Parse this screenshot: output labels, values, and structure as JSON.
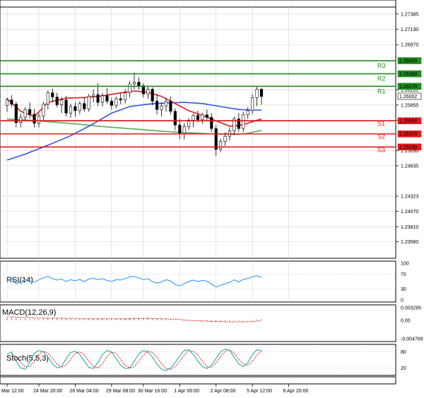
{
  "chart_data": {
    "type": "candlestick",
    "symbol_note": "",
    "main": {
      "ylim": [
        1.2328,
        1.2762
      ],
      "y_ticks": [
        "1.27385",
        "1.27130",
        "1.26870",
        "1.26110",
        "1.25855",
        "1.25600",
        "1.25090",
        "1.24835",
        "1.24323",
        "1.24070",
        "1.23810",
        "1.23560"
      ],
      "price_tags": [
        {
          "label": "1.26600",
          "value": 1.266,
          "kind": "resistance"
        },
        {
          "label": "1.26380",
          "value": 1.2638,
          "kind": "resistance"
        },
        {
          "label": "1.26170",
          "value": 1.2617,
          "kind": "resistance"
        },
        {
          "label": "1.26002",
          "value": 1.26002,
          "kind": "current"
        },
        {
          "label": "1.25590",
          "value": 1.2559,
          "kind": "support"
        },
        {
          "label": "1.25370",
          "value": 1.2537,
          "kind": "support"
        },
        {
          "label": "1.25150",
          "value": 1.2515,
          "kind": "support"
        }
      ],
      "levels": [
        {
          "name": "R3",
          "value": 1.266,
          "color": "#1f8c1f"
        },
        {
          "name": "R2",
          "value": 1.2638,
          "color": "#1f8c1f"
        },
        {
          "name": "R1",
          "value": 1.2617,
          "color": "#1f8c1f"
        },
        {
          "name": "S1",
          "value": 1.2559,
          "color": "#e01b1b"
        },
        {
          "name": "S2",
          "value": 1.2537,
          "color": "#e01b1b"
        },
        {
          "name": "S3",
          "value": 1.2515,
          "color": "#e01b1b"
        }
      ],
      "candles": [
        [
          1.2585,
          1.2598,
          1.2574,
          1.2594
        ],
        [
          1.2594,
          1.2602,
          1.2582,
          1.2587
        ],
        [
          1.2587,
          1.2591,
          1.2548,
          1.2556
        ],
        [
          1.2556,
          1.2571,
          1.2548,
          1.2565
        ],
        [
          1.2565,
          1.2582,
          1.2558,
          1.2578
        ],
        [
          1.2578,
          1.259,
          1.2563,
          1.257
        ],
        [
          1.257,
          1.2579,
          1.2548,
          1.2555
        ],
        [
          1.2555,
          1.2572,
          1.2548,
          1.2567
        ],
        [
          1.2567,
          1.2591,
          1.256,
          1.2587
        ],
        [
          1.2587,
          1.261,
          1.2578,
          1.2606
        ],
        [
          1.2606,
          1.2613,
          1.259,
          1.2599
        ],
        [
          1.2599,
          1.2606,
          1.2582,
          1.2586
        ],
        [
          1.2586,
          1.2599,
          1.2572,
          1.2594
        ],
        [
          1.2594,
          1.2601,
          1.2566,
          1.2572
        ],
        [
          1.2572,
          1.2588,
          1.2564,
          1.2583
        ],
        [
          1.2583,
          1.259,
          1.2566,
          1.2576
        ],
        [
          1.2576,
          1.2592,
          1.257,
          1.2588
        ],
        [
          1.2588,
          1.2598,
          1.2574,
          1.2579
        ],
        [
          1.2579,
          1.2604,
          1.2574,
          1.26
        ],
        [
          1.26,
          1.2612,
          1.259,
          1.2603
        ],
        [
          1.2603,
          1.2622,
          1.2584,
          1.259
        ],
        [
          1.259,
          1.2606,
          1.2583,
          1.2601
        ],
        [
          1.2601,
          1.2614,
          1.2588,
          1.2592
        ],
        [
          1.2592,
          1.2598,
          1.2578,
          1.2585
        ],
        [
          1.2585,
          1.26,
          1.258,
          1.2596
        ],
        [
          1.2596,
          1.2606,
          1.2587,
          1.2594
        ],
        [
          1.2594,
          1.2612,
          1.2588,
          1.2606
        ],
        [
          1.2606,
          1.2626,
          1.2598,
          1.2621
        ],
        [
          1.2621,
          1.264,
          1.2612,
          1.2624
        ],
        [
          1.2624,
          1.2632,
          1.2611,
          1.2618
        ],
        [
          1.2618,
          1.2622,
          1.2598,
          1.2604
        ],
        [
          1.2604,
          1.2616,
          1.2596,
          1.2612
        ],
        [
          1.2612,
          1.2615,
          1.2585,
          1.2592
        ],
        [
          1.2592,
          1.2604,
          1.257,
          1.2578
        ],
        [
          1.2578,
          1.259,
          1.2566,
          1.2584
        ],
        [
          1.2584,
          1.2598,
          1.2574,
          1.2592
        ],
        [
          1.2592,
          1.26,
          1.257,
          1.2575
        ],
        [
          1.2575,
          1.258,
          1.2543,
          1.2552
        ],
        [
          1.2552,
          1.2562,
          1.2528,
          1.2538
        ],
        [
          1.2538,
          1.2555,
          1.2528,
          1.2549
        ],
        [
          1.2549,
          1.2564,
          1.2543,
          1.256
        ],
        [
          1.256,
          1.2571,
          1.2548,
          1.2568
        ],
        [
          1.2568,
          1.2576,
          1.2556,
          1.2561
        ],
        [
          1.2561,
          1.2572,
          1.2554,
          1.2569
        ],
        [
          1.2569,
          1.2578,
          1.2558,
          1.2565
        ],
        [
          1.2565,
          1.2572,
          1.254,
          1.2546
        ],
        [
          1.2546,
          1.2552,
          1.25,
          1.2511
        ],
        [
          1.2511,
          1.2529,
          1.2506,
          1.2524
        ],
        [
          1.2524,
          1.254,
          1.2517,
          1.2533
        ],
        [
          1.2533,
          1.2548,
          1.2526,
          1.2542
        ],
        [
          1.2542,
          1.2566,
          1.2535,
          1.2562
        ],
        [
          1.2562,
          1.2572,
          1.254,
          1.2546
        ],
        [
          1.2546,
          1.2574,
          1.254,
          1.2569
        ],
        [
          1.2569,
          1.2582,
          1.2562,
          1.2576
        ],
        [
          1.2576,
          1.2604,
          1.257,
          1.2598
        ],
        [
          1.2598,
          1.2618,
          1.2584,
          1.2612
        ],
        [
          1.2612,
          1.2614,
          1.2586,
          1.26
        ]
      ],
      "ma_fast": [
        [
          0,
          1.2596
        ],
        [
          3,
          1.2575
        ],
        [
          6,
          1.2566
        ],
        [
          9,
          1.259
        ],
        [
          13,
          1.2597
        ],
        [
          17,
          1.2598
        ],
        [
          21,
          1.2601
        ],
        [
          25,
          1.2606
        ],
        [
          28,
          1.2609
        ],
        [
          31,
          1.2607
        ],
        [
          34,
          1.26
        ],
        [
          37,
          1.2588
        ],
        [
          40,
          1.2576
        ],
        [
          43,
          1.2568
        ],
        [
          45,
          1.2562
        ],
        [
          47,
          1.2556
        ],
        [
          49,
          1.255
        ],
        [
          51,
          1.2551
        ],
        [
          53,
          1.2555
        ],
        [
          55,
          1.256
        ],
        [
          56,
          1.2562
        ]
      ],
      "ma_mid": [
        [
          0,
          1.2493
        ],
        [
          4,
          1.2503
        ],
        [
          9,
          1.2518
        ],
        [
          14,
          1.2534
        ],
        [
          19,
          1.2554
        ],
        [
          23,
          1.2572
        ],
        [
          27,
          1.2583
        ],
        [
          31,
          1.2587
        ],
        [
          35,
          1.2589
        ],
        [
          39,
          1.259
        ],
        [
          43,
          1.2588
        ],
        [
          47,
          1.2583
        ],
        [
          51,
          1.2578
        ],
        [
          54,
          1.2577
        ],
        [
          56,
          1.2577
        ]
      ],
      "ma_slow": [
        [
          0,
          1.2562
        ],
        [
          5,
          1.256
        ],
        [
          10,
          1.2557
        ],
        [
          15,
          1.2554
        ],
        [
          20,
          1.255
        ],
        [
          25,
          1.2547
        ],
        [
          30,
          1.2544
        ],
        [
          35,
          1.2541
        ],
        [
          40,
          1.2539
        ],
        [
          45,
          1.2537
        ],
        [
          50,
          1.2536
        ],
        [
          53,
          1.2538
        ],
        [
          56,
          1.2543
        ]
      ]
    },
    "rsi": {
      "label": "RSI(14)",
      "ticks": [
        "100",
        "70",
        "30",
        "0"
      ],
      "ylim": [
        0,
        100
      ],
      "values": [
        52,
        58,
        44,
        50,
        56,
        52,
        48,
        55,
        60,
        64,
        58,
        54,
        57,
        50,
        55,
        52,
        56,
        50,
        57,
        59,
        55,
        58,
        53,
        50,
        55,
        54,
        58,
        63,
        64,
        60,
        55,
        58,
        50,
        46,
        49,
        55,
        52,
        42,
        38,
        44,
        50,
        54,
        50,
        53,
        51,
        43,
        35,
        40,
        44,
        48,
        55,
        49,
        56,
        58,
        63,
        66,
        61
      ]
    },
    "macd": {
      "label": "MACD(12,26,9)",
      "ticks": [
        "0.003285",
        "0.00",
        "-0.004769"
      ],
      "ylim": [
        -0.004769,
        0.003285
      ],
      "histogram": [
        0.0006,
        0.0007,
        0.0005,
        0.0004,
        0.0004,
        0.0003,
        0.0003,
        0.0003,
        0.0004,
        0.0006,
        0.0006,
        0.0005,
        0.0005,
        0.0004,
        0.0004,
        0.0003,
        0.0003,
        0.0003,
        0.0004,
        0.0005,
        0.0005,
        0.0005,
        0.0005,
        0.0004,
        0.0004,
        0.0004,
        0.0005,
        0.0006,
        0.0007,
        0.0007,
        0.0006,
        0.0006,
        0.0005,
        0.0004,
        0.0003,
        0.0003,
        0.0002,
        0.0001,
        0.0,
        -0.0001,
        -0.0001,
        -0.0001,
        -0.0002,
        -0.0002,
        -0.0002,
        -0.0003,
        -0.0004,
        -0.0004,
        -0.0004,
        -0.0003,
        -0.0002,
        -0.0002,
        -0.0001,
        0.0,
        0.0001,
        0.0002,
        0.0003
      ],
      "signal": [
        0.0009,
        0.0009,
        0.0008,
        0.0008,
        0.0007,
        0.0007,
        0.0006,
        0.0006,
        0.0006,
        0.0006,
        0.0006,
        0.0006,
        0.0006,
        0.0005,
        0.0005,
        0.0005,
        0.0004,
        0.0004,
        0.0004,
        0.0004,
        0.0004,
        0.0004,
        0.0004,
        0.0004,
        0.0004,
        0.0004,
        0.0004,
        0.0004,
        0.0005,
        0.0005,
        0.0005,
        0.0005,
        0.0005,
        0.0005,
        0.0004,
        0.0004,
        0.0003,
        0.0003,
        0.0002,
        0.0001,
        0.0,
        -0.0001,
        -0.0001,
        -0.0002,
        -0.0002,
        -0.0003,
        -0.0003,
        -0.0003,
        -0.0004,
        -0.0004,
        -0.0004,
        -0.0004,
        -0.0004,
        -0.0003,
        -0.0003,
        -0.0002,
        -0.0001
      ]
    },
    "stoch": {
      "label": "Stoch(5,5,3)",
      "ticks": [
        "80",
        "20"
      ],
      "ylim": [
        0,
        100
      ],
      "k": [
        70,
        80,
        45,
        20,
        15,
        40,
        75,
        85,
        80,
        60,
        35,
        20,
        25,
        55,
        78,
        82,
        70,
        45,
        22,
        18,
        40,
        70,
        85,
        80,
        55,
        30,
        18,
        20,
        45,
        72,
        85,
        80,
        60,
        35,
        15,
        10,
        20,
        40,
        65,
        85,
        88,
        70,
        45,
        25,
        18,
        30,
        55,
        80,
        90,
        85,
        60,
        35,
        25,
        40,
        70,
        88,
        85
      ],
      "d": [
        60,
        70,
        60,
        40,
        25,
        25,
        45,
        70,
        82,
        75,
        55,
        35,
        22,
        30,
        52,
        75,
        80,
        70,
        45,
        25,
        20,
        35,
        62,
        80,
        75,
        52,
        30,
        20,
        25,
        45,
        68,
        82,
        78,
        60,
        35,
        18,
        15,
        25,
        45,
        68,
        85,
        82,
        68,
        45,
        25,
        22,
        38,
        62,
        82,
        88,
        75,
        52,
        35,
        30,
        45,
        68,
        82
      ]
    },
    "x_ticks": [
      {
        "i": 0,
        "label": "Mar 12:00"
      },
      {
        "i": 7,
        "label": "24 Mar 20:00"
      },
      {
        "i": 15,
        "label": "26 Mar 04:00"
      },
      {
        "i": 23,
        "label": "29 Mar 08:00"
      },
      {
        "i": 30,
        "label": "30 Mar 16:00"
      },
      {
        "i": 38,
        "label": "1 Apr 00:00"
      },
      {
        "i": 46,
        "label": "2 Apr 08:00"
      },
      {
        "i": 54,
        "label": "5 Apr 12:00"
      },
      {
        "i": 62,
        "label": "6 Apr 20:00"
      }
    ],
    "colors": {
      "up": "#1f8c1f",
      "down": "#e01b1b",
      "ma_fast": "#e01b1b",
      "ma_mid": "#3355dd",
      "ma_slow": "#5aa85a",
      "rsi": "#1e90ff",
      "macd_signal": "#e01b1b",
      "stoch_k": "#1aa3a3",
      "stoch_d": "#e01b1b",
      "grid": "#d0d0d0",
      "resistance": "#1f8c1f",
      "support": "#e01b1b"
    }
  }
}
